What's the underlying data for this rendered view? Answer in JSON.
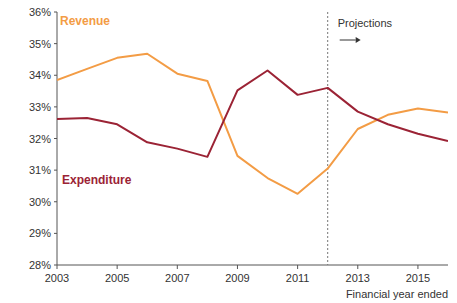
{
  "chart_data": {
    "type": "line",
    "x": [
      2003,
      2004,
      2005,
      2006,
      2007,
      2008,
      2009,
      2010,
      2011,
      2012,
      2013,
      2014,
      2015,
      2016
    ],
    "series": [
      {
        "name": "Revenue",
        "color": "#f39c45",
        "values": [
          33.85,
          34.2,
          34.55,
          34.68,
          34.05,
          33.82,
          31.45,
          30.75,
          30.25,
          31.05,
          32.3,
          32.75,
          32.95,
          32.82
        ]
      },
      {
        "name": "Expenditure",
        "color": "#9b2335",
        "values": [
          32.62,
          32.65,
          32.45,
          31.88,
          31.68,
          31.42,
          33.52,
          34.15,
          33.38,
          33.6,
          32.85,
          32.45,
          32.15,
          31.92
        ]
      }
    ],
    "xlim": [
      2003,
      2016
    ],
    "xticks": [
      2003,
      2005,
      2007,
      2009,
      2011,
      2013,
      2015
    ],
    "ylim": [
      28,
      36
    ],
    "yticks": [
      {
        "value": 28,
        "label": "28%"
      },
      {
        "value": 29,
        "label": "29%"
      },
      {
        "value": 30,
        "label": "30%"
      },
      {
        "value": 31,
        "label": "31%"
      },
      {
        "value": 32,
        "label": "32%"
      },
      {
        "value": 33,
        "label": "33%"
      },
      {
        "value": 34,
        "label": "34%"
      },
      {
        "value": 35,
        "label": "35%"
      },
      {
        "value": 36,
        "label": "36%"
      }
    ],
    "x_label": "Financial year ended",
    "annotations": [
      {
        "text": "Projections",
        "x": 2012
      }
    ],
    "grid": false
  }
}
